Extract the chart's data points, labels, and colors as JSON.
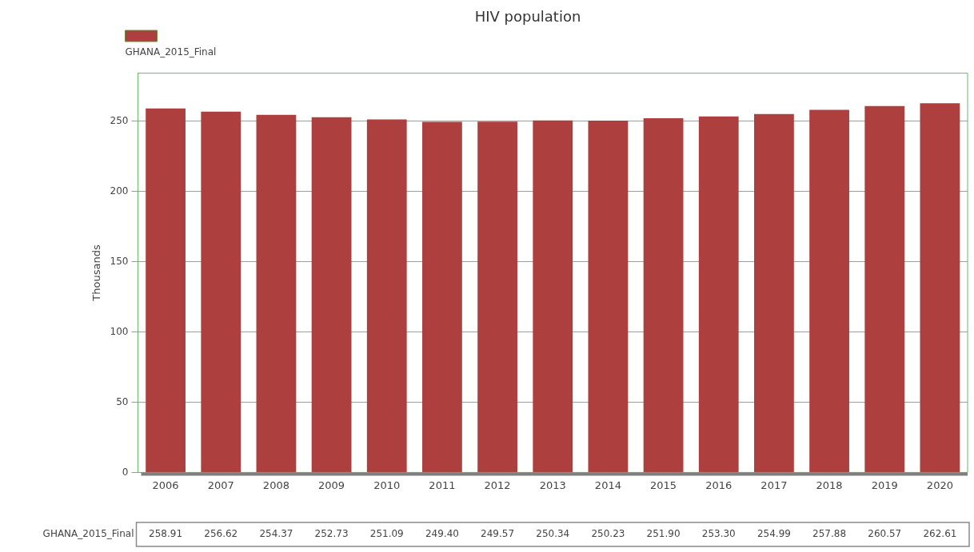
{
  "chart_data": {
    "type": "bar",
    "title": "HIV population",
    "ylabel": "Thousands",
    "categories": [
      "2006",
      "2007",
      "2008",
      "2009",
      "2010",
      "2011",
      "2012",
      "2013",
      "2014",
      "2015",
      "2016",
      "2017",
      "2018",
      "2019",
      "2020"
    ],
    "series": [
      {
        "name": "GHANA_2015_Final",
        "color": "#ae3f3f",
        "values": [
          258.91,
          256.62,
          254.37,
          252.73,
          251.09,
          249.4,
          249.57,
          250.34,
          250.23,
          251.9,
          253.3,
          254.99,
          257.88,
          260.57,
          262.61
        ],
        "value_labels": [
          "258.91",
          "256.62",
          "254.37",
          "252.73",
          "251.09",
          "249.40",
          "249.57",
          "250.34",
          "250.23",
          "251.90",
          "253.30",
          "254.99",
          "257.88",
          "260.57",
          "262.61"
        ]
      }
    ],
    "ylim": [
      0,
      284
    ],
    "yticks": [
      0,
      50,
      100,
      150,
      200,
      250
    ],
    "grid": "y",
    "legend": "top left"
  }
}
